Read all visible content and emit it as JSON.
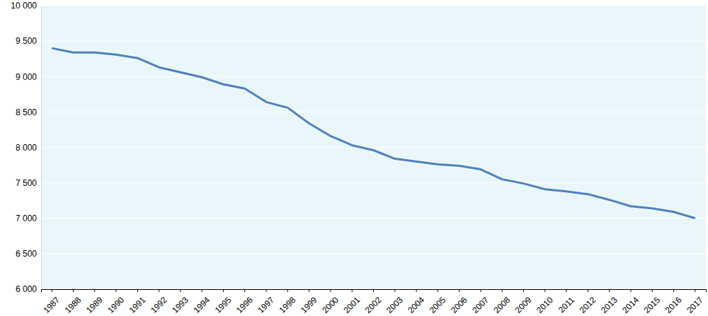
{
  "chart_data": {
    "type": "line",
    "categories": [
      "1987",
      "1988",
      "1989",
      "1990",
      "1991",
      "1992",
      "1993",
      "1994",
      "1995",
      "1996",
      "1997",
      "1998",
      "1999",
      "2000",
      "2001",
      "2002",
      "2003",
      "2004",
      "2005",
      "2006",
      "2007",
      "2008",
      "2009",
      "2010",
      "2011",
      "2012",
      "2013",
      "2014",
      "2015",
      "2016",
      "2017"
    ],
    "values": [
      9400,
      9340,
      9340,
      9310,
      9260,
      9130,
      9060,
      8990,
      8890,
      8830,
      8640,
      8560,
      8340,
      8160,
      8030,
      7960,
      7840,
      7800,
      7760,
      7740,
      7690,
      7550,
      7490,
      7410,
      7380,
      7340,
      7260,
      7170,
      7140,
      7090,
      7000
    ],
    "color": "#4f81bd",
    "ylim": [
      6000,
      10000
    ],
    "yticks": [
      {
        "value": 6000,
        "label": "6 000"
      },
      {
        "value": 6500,
        "label": "6 500"
      },
      {
        "value": 7000,
        "label": "7 000"
      },
      {
        "value": 7500,
        "label": "7 500"
      },
      {
        "value": 8000,
        "label": "8 000"
      },
      {
        "value": 8500,
        "label": "8 500"
      },
      {
        "value": 9000,
        "label": "9 000"
      },
      {
        "value": 9500,
        "label": "9 500"
      },
      {
        "value": 10000,
        "label": "10 000"
      }
    ],
    "grid": true
  }
}
